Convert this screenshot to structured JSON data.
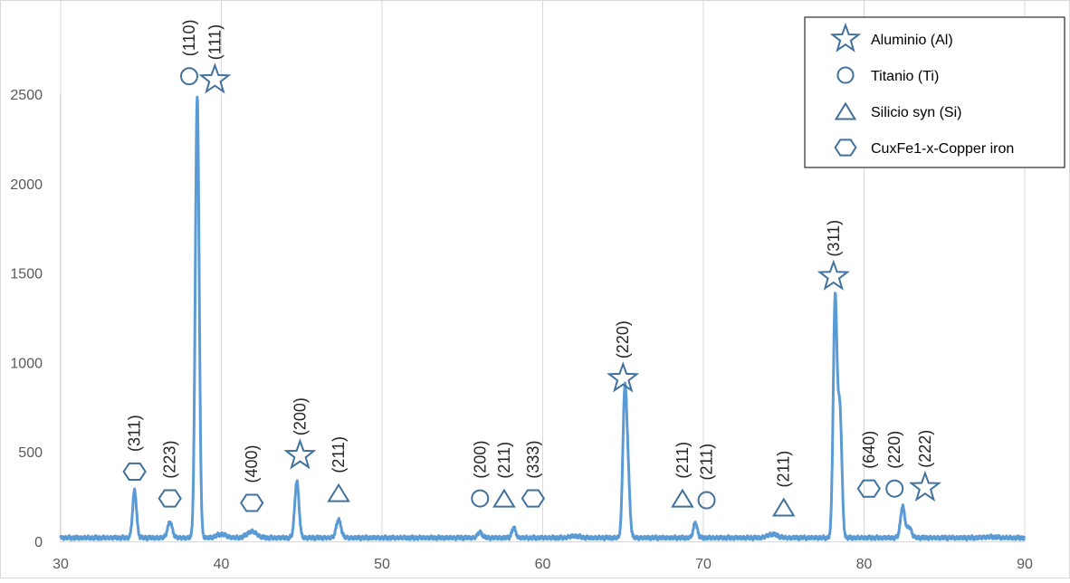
{
  "chart_data": {
    "type": "line",
    "title": "",
    "xlabel": "",
    "ylabel": "",
    "xlim": [
      30,
      90
    ],
    "ylim": [
      0,
      2500
    ],
    "x_ticks": [
      30,
      40,
      50,
      60,
      70,
      80,
      90
    ],
    "y_ticks": [
      0,
      500,
      1000,
      1500,
      2000,
      2500
    ],
    "grid": "vertical",
    "legend_position": "top-right",
    "line_color": "#5b9bd5",
    "marker_color": "#41719c",
    "series": [
      {
        "baseline": 20,
        "peaks": [
          {
            "x": 34.6,
            "y": 285,
            "w": 0.12
          },
          {
            "x": 36.8,
            "y": 105,
            "w": 0.15
          },
          {
            "x": 38.5,
            "y": 2490,
            "w": 0.12
          },
          {
            "x": 40.0,
            "y": 40,
            "w": 0.3
          },
          {
            "x": 41.9,
            "y": 55,
            "w": 0.3
          },
          {
            "x": 44.7,
            "y": 335,
            "w": 0.13
          },
          {
            "x": 47.3,
            "y": 120,
            "w": 0.15
          },
          {
            "x": 56.1,
            "y": 50,
            "w": 0.15
          },
          {
            "x": 58.2,
            "y": 75,
            "w": 0.12
          },
          {
            "x": 62.0,
            "y": 30,
            "w": 0.3
          },
          {
            "x": 65.1,
            "y": 780,
            "w": 0.12
          },
          {
            "x": 65.3,
            "y": 350,
            "w": 0.12
          },
          {
            "x": 69.5,
            "y": 105,
            "w": 0.12
          },
          {
            "x": 74.3,
            "y": 40,
            "w": 0.3
          },
          {
            "x": 78.2,
            "y": 1350,
            "w": 0.12
          },
          {
            "x": 78.5,
            "y": 720,
            "w": 0.12
          },
          {
            "x": 82.4,
            "y": 195,
            "w": 0.13
          },
          {
            "x": 82.8,
            "y": 80,
            "w": 0.15
          },
          {
            "x": 87.9,
            "y": 25,
            "w": 0.4
          }
        ]
      }
    ],
    "annotations": [
      {
        "marker": "hexagon",
        "label": "(311)",
        "x": 34.6,
        "y": 390
      },
      {
        "marker": "hexagon",
        "label": "(223)",
        "x": 36.8,
        "y": 240
      },
      {
        "marker": "circle",
        "label": "(110)",
        "x": 38.0,
        "y": 2600
      },
      {
        "marker": "star",
        "label": "(111)",
        "x": 39.6,
        "y": 2580
      },
      {
        "marker": "hexagon",
        "label": "(400)",
        "x": 41.9,
        "y": 215
      },
      {
        "marker": "star",
        "label": "(200)",
        "x": 44.9,
        "y": 480
      },
      {
        "marker": "triangle",
        "label": "(211)",
        "x": 47.3,
        "y": 270
      },
      {
        "marker": "circle",
        "label": "(200)",
        "x": 56.1,
        "y": 240
      },
      {
        "marker": "triangle",
        "label": "(211)",
        "x": 57.6,
        "y": 240
      },
      {
        "marker": "hexagon",
        "label": "(333)",
        "x": 59.4,
        "y": 240
      },
      {
        "marker": "star",
        "label": "(220)",
        "x": 65.0,
        "y": 910
      },
      {
        "marker": "triangle",
        "label": "(211)",
        "x": 68.7,
        "y": 240
      },
      {
        "marker": "circle",
        "label": "(211)",
        "x": 70.2,
        "y": 230
      },
      {
        "marker": "triangle",
        "label": "(211)",
        "x": 75.0,
        "y": 190
      },
      {
        "marker": "star",
        "label": "(311)",
        "x": 78.1,
        "y": 1480
      },
      {
        "marker": "hexagon",
        "label": "(640)",
        "x": 80.3,
        "y": 295
      },
      {
        "marker": "circle",
        "label": "(220)",
        "x": 81.9,
        "y": 295
      },
      {
        "marker": "star",
        "label": "(222)",
        "x": 83.8,
        "y": 300
      }
    ],
    "legend": [
      {
        "marker": "star",
        "label": "Aluminio (Al)"
      },
      {
        "marker": "circle",
        "label": "Titanio (Ti)"
      },
      {
        "marker": "triangle",
        "label": "Silicio syn (Si)"
      },
      {
        "marker": "hexagon",
        "label": "CuxFe1-x-Copper iron"
      }
    ]
  }
}
